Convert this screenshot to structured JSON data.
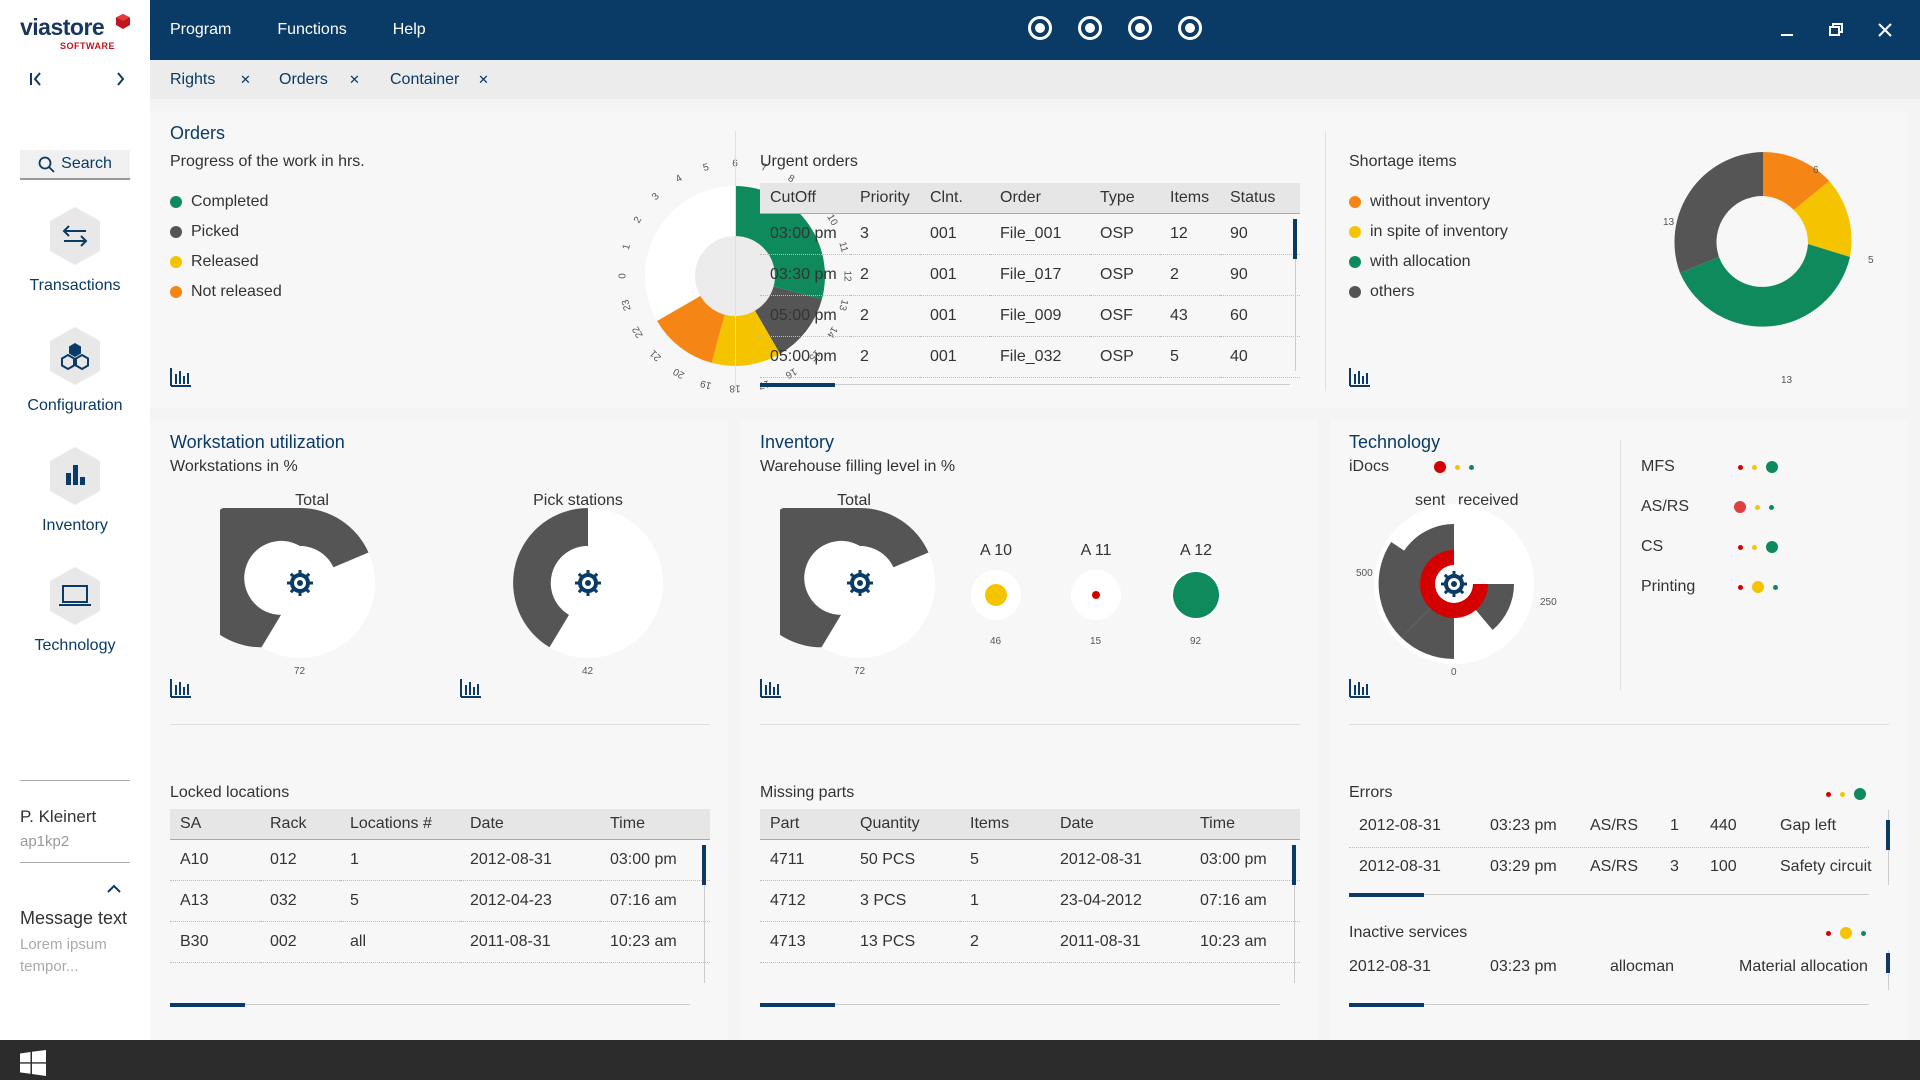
{
  "sidebar": {
    "logo_text": "viastore",
    "logo_sub": "SOFTWARE",
    "search_label": "Search",
    "items": [
      {
        "label": "Transactions",
        "icon": "transactions-icon"
      },
      {
        "label": "Configuration",
        "icon": "configuration-icon"
      },
      {
        "label": "Inventory",
        "icon": "inventory-icon"
      },
      {
        "label": "Technology",
        "icon": "technology-icon"
      }
    ],
    "user_name": "P. Kleinert",
    "user_id": "ap1kp2",
    "message_title": "Message text",
    "message_body": "Lorem ipsum tempor..."
  },
  "header": {
    "menu": [
      "Program",
      "Functions",
      "Help"
    ],
    "status_dot_count": 4
  },
  "tabs": [
    {
      "label": "Rights"
    },
    {
      "label": "Orders"
    },
    {
      "label": "Container"
    }
  ],
  "colors": {
    "primary": "#0a3a66",
    "green": "#0e8a5c",
    "dark_gray": "#555555",
    "yellow": "#f5c400",
    "orange": "#f58514",
    "red": "#d40000"
  },
  "orders": {
    "title": "Orders",
    "subtitle": "Progress of the work in hrs.",
    "legend": [
      {
        "label": "Completed",
        "color": "#0e8a5c"
      },
      {
        "label": "Picked",
        "color": "#555555"
      },
      {
        "label": "Released",
        "color": "#f5c400"
      },
      {
        "label": "Not released",
        "color": "#f58514"
      }
    ],
    "clock_ticks": [
      "1",
      "2",
      "3",
      "4",
      "5",
      "6",
      "7",
      "8",
      "9",
      "10",
      "11",
      "12",
      "13",
      "14",
      "15",
      "16",
      "17",
      "18",
      "19",
      "20",
      "21",
      "22",
      "23",
      "0"
    ],
    "segments": {
      "Completed": 8,
      "Picked": 2,
      "Released": 3,
      "Not released": 2
    }
  },
  "urgent_orders": {
    "title": "Urgent orders",
    "columns": [
      "CutOff",
      "Priority",
      "Clnt.",
      "Order",
      "Type",
      "Items",
      "Status"
    ],
    "rows": [
      [
        "03:00 pm",
        "3",
        "001",
        "File_001",
        "OSP",
        "12",
        "90"
      ],
      [
        "03:30 pm",
        "2",
        "001",
        "File_017",
        "OSP",
        "2",
        "90"
      ],
      [
        "05:00 pm",
        "2",
        "001",
        "File_009",
        "OSF",
        "43",
        "60"
      ],
      [
        "05:00 pm",
        "2",
        "001",
        "File_032",
        "OSP",
        "5",
        "40"
      ]
    ]
  },
  "shortage": {
    "title": "Shortage items",
    "legend": [
      {
        "label": "without inventory",
        "color": "#f58514"
      },
      {
        "label": "in spite of inventory",
        "color": "#f5c400"
      },
      {
        "label": "with allocation",
        "color": "#0e8a5c"
      },
      {
        "label": "others",
        "color": "#555555"
      }
    ],
    "values": [
      {
        "label": "without inventory",
        "value": "6"
      },
      {
        "label": "in spite of inventory",
        "value": "5"
      },
      {
        "label": "with allocation",
        "value": "13"
      },
      {
        "label": "others",
        "value": "13"
      }
    ]
  },
  "workstation": {
    "title": "Workstation utilization",
    "subtitle": "Workstations in %",
    "gauges": [
      {
        "label": "Total",
        "value": "72"
      },
      {
        "label": "Pick stations",
        "value": "42"
      }
    ]
  },
  "inventory": {
    "title": "Inventory",
    "subtitle": "Warehouse filling level in %",
    "total": {
      "label": "Total",
      "value": "72"
    },
    "areas": [
      {
        "label": "A 10",
        "value": "46",
        "color": "#f5c400"
      },
      {
        "label": "A 11",
        "value": "15",
        "color": "#d40000"
      },
      {
        "label": "A 12",
        "value": "92",
        "color": "#0e8a5c"
      }
    ]
  },
  "technology": {
    "title": "Technology",
    "idocs_label": "iDocs",
    "sent_label": "sent",
    "received_label": "received",
    "axis": {
      "left": "500",
      "right": "250",
      "bottom": "0"
    },
    "systems": [
      {
        "label": "MFS"
      },
      {
        "label": "AS/RS"
      },
      {
        "label": "CS"
      },
      {
        "label": "Printing"
      }
    ]
  },
  "locked_locations": {
    "title": "Locked locations",
    "columns": [
      "SA",
      "Rack",
      "Locations #",
      "Date",
      "Time"
    ],
    "rows": [
      [
        "A10",
        "012",
        "1",
        "2012-08-31",
        "03:00 pm"
      ],
      [
        "A13",
        "032",
        "5",
        "2012-04-23",
        "07:16 am"
      ],
      [
        "B30",
        "002",
        "all",
        "2011-08-31",
        "10:23 am"
      ]
    ]
  },
  "missing_parts": {
    "title": "Missing parts",
    "columns": [
      "Part",
      "Quantity",
      "Items",
      "Date",
      "Time"
    ],
    "rows": [
      [
        "4711",
        "50 PCS",
        "5",
        "2012-08-31",
        "03:00 pm"
      ],
      [
        "4712",
        "3 PCS",
        "1",
        "23-04-2012",
        "07:16 am"
      ],
      [
        "4713",
        "13 PCS",
        "2",
        "2011-08-31",
        "10:23 am"
      ]
    ]
  },
  "errors": {
    "title": "Errors",
    "rows": [
      [
        "2012-08-31",
        "03:23 pm",
        "AS/RS",
        "1",
        "440",
        "Gap left"
      ],
      [
        "2012-08-31",
        "03:29 pm",
        "AS/RS",
        "3",
        "100",
        "Safety circuit"
      ]
    ]
  },
  "inactive_services": {
    "title": "Inactive services",
    "rows": [
      [
        "2012-08-31",
        "03:23 pm",
        "allocman",
        "Material allocation"
      ]
    ]
  }
}
